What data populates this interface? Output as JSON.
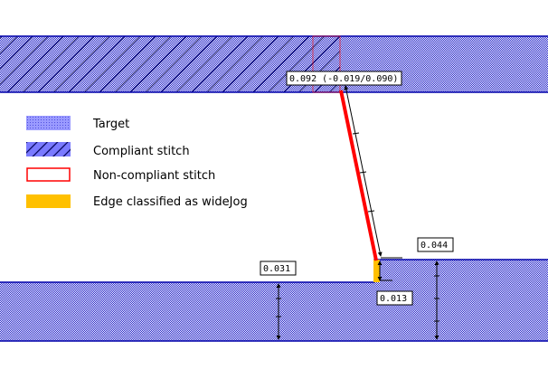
{
  "legend": [
    {
      "id": "target",
      "label": "Target"
    },
    {
      "id": "compliant",
      "label": "Compliant stitch"
    },
    {
      "id": "noncompliant",
      "label": "Non-compliant stitch"
    },
    {
      "id": "widejog",
      "label": "Edge classified as wideJog"
    }
  ],
  "measurements": {
    "top_diag": "0.092 (-0.019/0.090)",
    "right_step": "0.044",
    "left_bottom": "0.031",
    "jog": "0.013"
  },
  "colors": {
    "target_fill": "#8a8aff",
    "hatch_line": "#000066",
    "band_border": "#0000aa",
    "noncompliant": "#ff0000",
    "widejog": "#ffc000",
    "dim_line": "#000000"
  }
}
